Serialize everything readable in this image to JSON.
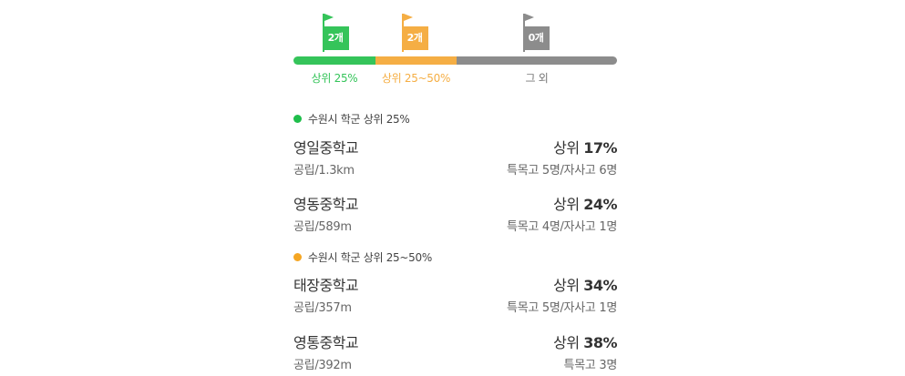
{
  "colors": {
    "top25": "#35c45a",
    "mid": "#f5ae44",
    "other": "#8c8c8c",
    "dot_top25": "#1fbe4b",
    "dot_mid": "#f5a623"
  },
  "rank_bar": {
    "segments": [
      {
        "flag_count": "2개",
        "label": "상위 25%",
        "color": "#35c45a"
      },
      {
        "flag_count": "2개",
        "label": "상위 25~50%",
        "color": "#f5ae44"
      },
      {
        "flag_count": "0개",
        "label": "그 외",
        "color": "#8c8c8c"
      }
    ]
  },
  "groups": [
    {
      "title": "수원시 학군 상위 25%",
      "schools": [
        {
          "name": "영일중학교",
          "sub": "공립/1.3km",
          "rank_prefix": "상위",
          "rank_value": "17%",
          "special": "특목고 5명/자사고 6명"
        },
        {
          "name": "영동중학교",
          "sub": "공립/589m",
          "rank_prefix": "상위",
          "rank_value": "24%",
          "special": "특목고 4명/자사고 1명"
        }
      ]
    },
    {
      "title": "수원시 학군 상위 25~50%",
      "schools": [
        {
          "name": "태장중학교",
          "sub": "공립/357m",
          "rank_prefix": "상위",
          "rank_value": "34%",
          "special": "특목고 5명/자사고 1명"
        },
        {
          "name": "영통중학교",
          "sub": "공립/392m",
          "rank_prefix": "상위",
          "rank_value": "38%",
          "special": "특목고 3명"
        }
      ]
    }
  ]
}
